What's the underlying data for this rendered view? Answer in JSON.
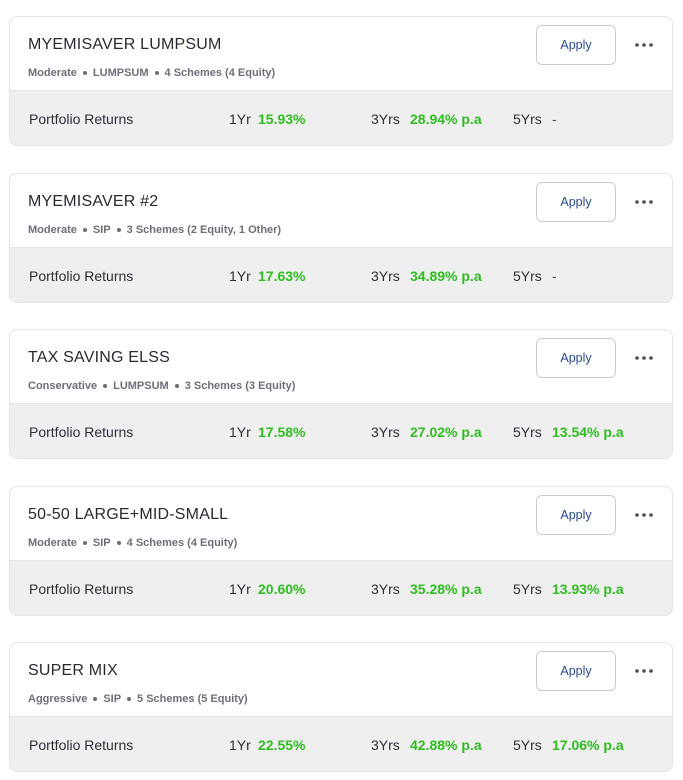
{
  "portfolios": [
    {
      "title": "MYEMISAVER LUMPSUM",
      "risk": "Moderate",
      "mode": "LUMPSUM",
      "schemes": "4 Schemes (4 Equity)",
      "apply_label": "Apply",
      "returns_label": "Portfolio Returns",
      "p1_label": "1Yr",
      "p1_value": "15.93%",
      "p3_label": "3Yrs",
      "p3_value": "28.94% p.a",
      "p5_label": "5Yrs",
      "p5_value": "-"
    },
    {
      "title": "MYEMISAVER #2",
      "risk": "Moderate",
      "mode": "SIP",
      "schemes": "3 Schemes (2 Equity, 1 Other)",
      "apply_label": "Apply",
      "returns_label": "Portfolio Returns",
      "p1_label": "1Yr",
      "p1_value": "17.63%",
      "p3_label": "3Yrs",
      "p3_value": "34.89% p.a",
      "p5_label": "5Yrs",
      "p5_value": "-"
    },
    {
      "title": "TAX SAVING ELSS",
      "risk": "Conservative",
      "mode": "LUMPSUM",
      "schemes": "3 Schemes (3 Equity)",
      "apply_label": "Apply",
      "returns_label": "Portfolio Returns",
      "p1_label": "1Yr",
      "p1_value": "17.58%",
      "p3_label": "3Yrs",
      "p3_value": "27.02% p.a",
      "p5_label": "5Yrs",
      "p5_value": "13.54% p.a"
    },
    {
      "title": "50-50 LARGE+MID-SMALL",
      "risk": "Moderate",
      "mode": "SIP",
      "schemes": "4 Schemes (4 Equity)",
      "apply_label": "Apply",
      "returns_label": "Portfolio Returns",
      "p1_label": "1Yr",
      "p1_value": "20.60%",
      "p3_label": "3Yrs",
      "p3_value": "35.28% p.a",
      "p5_label": "5Yrs",
      "p5_value": "13.93% p.a"
    },
    {
      "title": "SUPER MIX",
      "risk": "Aggressive",
      "mode": "SIP",
      "schemes": "5 Schemes (5 Equity)",
      "apply_label": "Apply",
      "returns_label": "Portfolio Returns",
      "p1_label": "1Yr",
      "p1_value": "22.55%",
      "p3_label": "3Yrs",
      "p3_value": "42.88% p.a",
      "p5_label": "5Yrs",
      "p5_value": "17.06% p.a"
    }
  ],
  "colors": {
    "positive_return": "#2ebd1f",
    "apply_text": "#2a4a8a",
    "returns_background": "#efefef",
    "card_border": "#e3e5ea"
  },
  "icons": {
    "more": "more-horizontal-icon"
  }
}
